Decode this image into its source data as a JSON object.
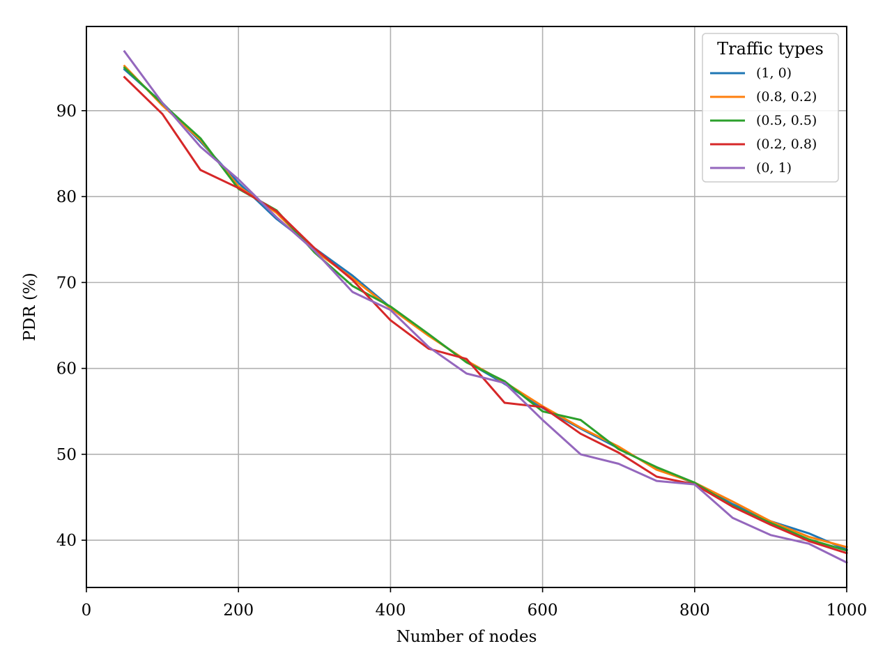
{
  "chart_data": {
    "type": "line",
    "title": "",
    "xlabel": "Number of nodes",
    "ylabel": "PDR (%)",
    "xlim": [
      0,
      1000
    ],
    "ylim": [
      34.5,
      99.8
    ],
    "x_ticks": [
      0,
      200,
      400,
      600,
      800,
      1000
    ],
    "y_ticks": [
      40,
      50,
      60,
      70,
      80,
      90
    ],
    "grid": true,
    "legend_title": "Traffic types",
    "legend_position": "top-right",
    "x": [
      50,
      100,
      150,
      200,
      250,
      300,
      350,
      400,
      450,
      500,
      550,
      600,
      650,
      700,
      750,
      800,
      850,
      900,
      950,
      1000
    ],
    "series": [
      {
        "name": "(1, 0)",
        "color": "#1f77b4",
        "values": [
          94.8,
          90.9,
          86.4,
          81.6,
          77.4,
          74.0,
          70.8,
          67.1,
          63.9,
          60.8,
          58.2,
          55.4,
          53.0,
          50.7,
          48.4,
          46.6,
          44.2,
          42.2,
          40.8,
          38.9
        ]
      },
      {
        "name": "(0.8, 0.2)",
        "color": "#ff7f0e",
        "values": [
          95.2,
          90.6,
          86.6,
          81.2,
          78.1,
          73.7,
          70.5,
          67.0,
          63.8,
          60.9,
          58.4,
          55.6,
          53.1,
          50.9,
          48.2,
          46.7,
          44.5,
          42.2,
          40.4,
          39.2
        ]
      },
      {
        "name": "(0.5, 0.5)",
        "color": "#2ca02c",
        "values": [
          95.0,
          90.8,
          86.8,
          80.9,
          78.4,
          73.5,
          69.6,
          67.2,
          64.0,
          60.7,
          58.5,
          55.0,
          54.0,
          50.6,
          48.5,
          46.7,
          44.0,
          42.0,
          40.1,
          38.8
        ]
      },
      {
        "name": "(0.2, 0.8)",
        "color": "#d62728",
        "values": [
          93.9,
          89.6,
          83.1,
          81.0,
          78.3,
          74.0,
          70.3,
          65.6,
          62.3,
          61.1,
          56.0,
          55.5,
          52.4,
          50.2,
          47.4,
          46.5,
          43.9,
          41.8,
          39.9,
          38.5
        ]
      },
      {
        "name": "(0, 1)",
        "color": "#9467bd",
        "values": [
          96.9,
          90.9,
          85.8,
          82.0,
          77.6,
          73.7,
          68.9,
          66.8,
          62.5,
          59.4,
          58.3,
          54.0,
          50.0,
          48.9,
          46.9,
          46.5,
          42.6,
          40.6,
          39.6,
          37.4
        ]
      }
    ]
  }
}
